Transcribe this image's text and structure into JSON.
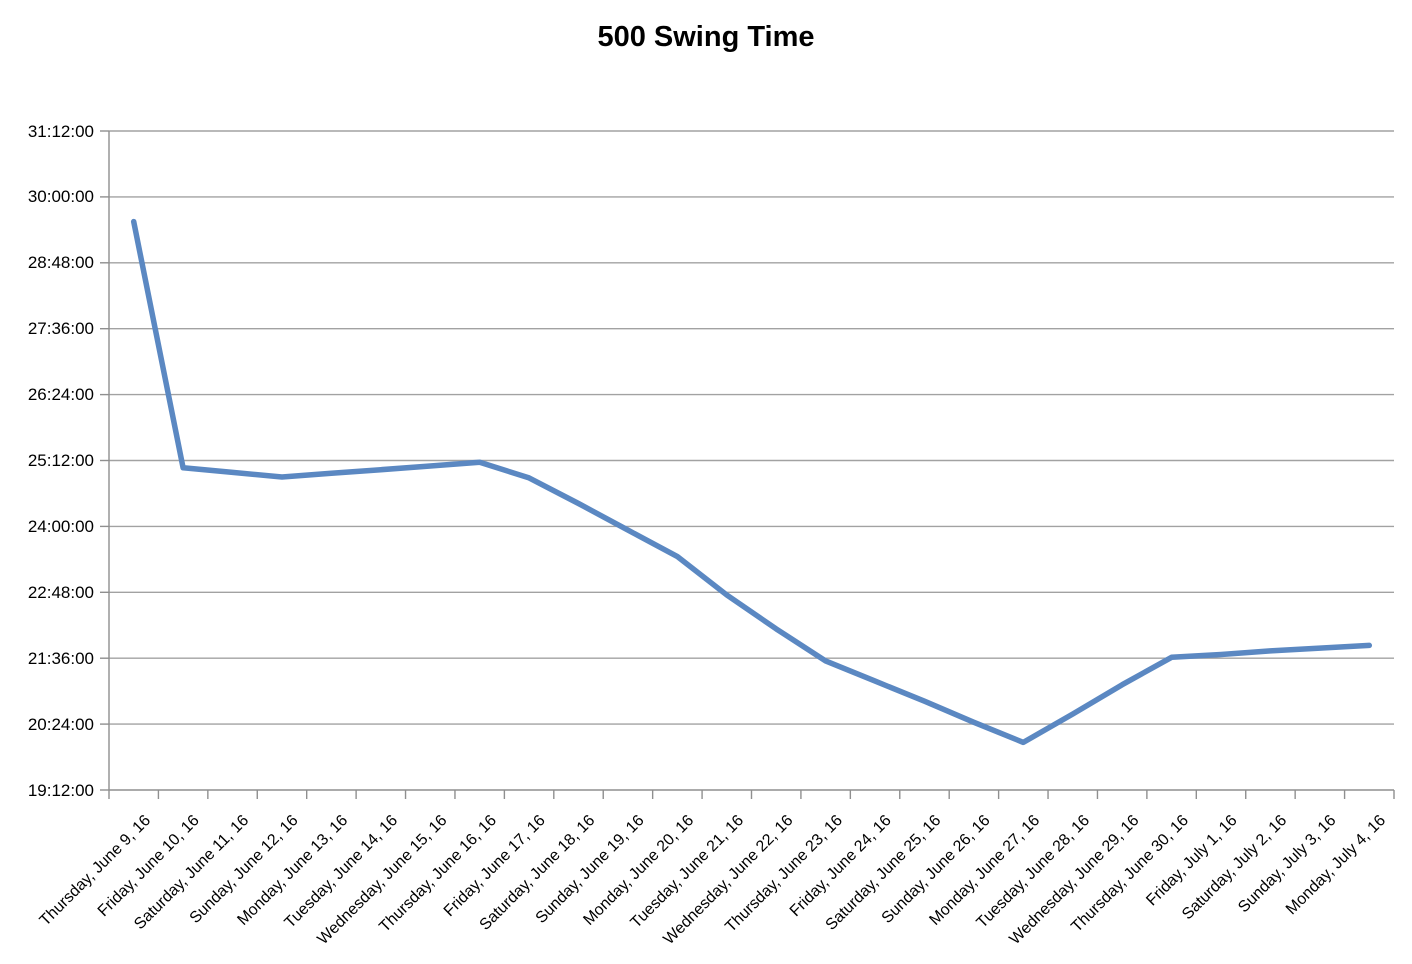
{
  "chart_data": {
    "type": "line",
    "title": "500 Swing Time",
    "categories": [
      "Thursday, June 9, 16",
      "Friday, June 10, 16",
      "Saturday, June 11, 16",
      "Sunday, June 12, 16",
      "Monday, June 13, 16",
      "Tuesday, June 14, 16",
      "Wednesday, June 15, 16",
      "Thursday, June 16, 16",
      "Friday, June 17, 16",
      "Saturday, June 18, 16",
      "Sunday, June 19, 16",
      "Monday, June 20, 16",
      "Tuesday, June 21, 16",
      "Wednesday, June 22, 16",
      "Thursday, June 23, 16",
      "Friday, June 24, 16",
      "Saturday, June 25, 16",
      "Sunday, June 26, 16",
      "Monday, June 27, 16",
      "Tuesday, June 28, 16",
      "Wednesday, June 29, 16",
      "Thursday, June 30, 16",
      "Friday, July 1, 16",
      "Saturday, July 2, 16",
      "Sunday, July 3, 16",
      "Monday, July 4, 16"
    ],
    "series": [
      {
        "name": "500 Swing Time",
        "values": [
          "29:33:00",
          "25:04:00",
          "24:59:00",
          "24:54:00",
          "24:58:00",
          "25:02:00",
          "25:06:00",
          "25:10:00",
          "24:53:00",
          "24:25:00",
          "23:56:00",
          "23:27:00",
          "22:45:00",
          "22:08:00",
          "21:33:00",
          "21:11:00",
          "20:49:00",
          "20:26:00",
          "20:04:00",
          "20:35:00",
          "21:07:00",
          "21:37:00",
          "21:40:00",
          "21:44:00",
          "21:47:00",
          "21:50:00"
        ]
      }
    ],
    "y_ticks": [
      "31:12:00",
      "30:00:00",
      "28:48:00",
      "27:36:00",
      "26:24:00",
      "25:12:00",
      "24:00:00",
      "22:48:00",
      "21:36:00",
      "20:24:00",
      "19:12:00"
    ],
    "y_axis": {
      "min_hours": 19.2,
      "max_hours": 31.2,
      "step_hours": 1.2
    },
    "xlabel": "",
    "ylabel": "",
    "grid": true,
    "legend_position": "none",
    "colors": {
      "series": "#5b88c2",
      "gridline": "#a2a2a2",
      "axis": "#8f8f8f",
      "text": "#000000",
      "background": "#ffffff"
    }
  }
}
